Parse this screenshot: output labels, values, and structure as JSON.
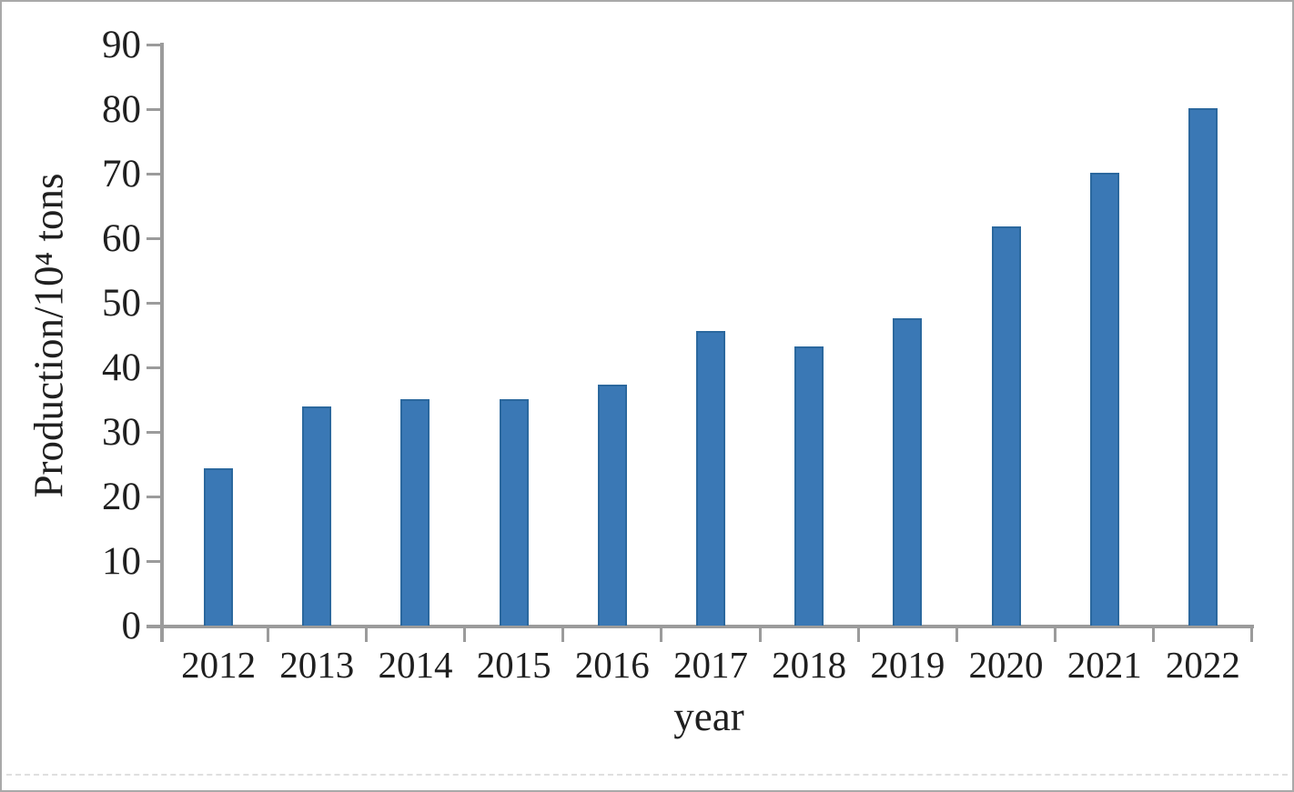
{
  "chart_data": {
    "type": "bar",
    "title": "",
    "xlabel": "year",
    "ylabel": "Production/10⁴ tons",
    "categories": [
      "2012",
      "2013",
      "2014",
      "2015",
      "2016",
      "2017",
      "2018",
      "2019",
      "2020",
      "2021",
      "2022"
    ],
    "values": [
      24.3,
      34.0,
      35.1,
      35.1,
      37.3,
      45.6,
      43.2,
      47.6,
      61.8,
      70.2,
      80.2
    ],
    "ylim": [
      0,
      90
    ],
    "ytick_step": 10,
    "ytick_labels": [
      "0",
      "10",
      "20",
      "30",
      "40",
      "50",
      "60",
      "70",
      "80",
      "90"
    ],
    "grid": false,
    "legend": null,
    "colors": {
      "bar_fill": "#3a78b5",
      "bar_border": "#2b689e",
      "axis": "#9b9b9b",
      "text": "#1f1f1f",
      "background": "#ffffff",
      "frame_border": "#a9a9a9",
      "divider": "#dfdfdf"
    }
  }
}
